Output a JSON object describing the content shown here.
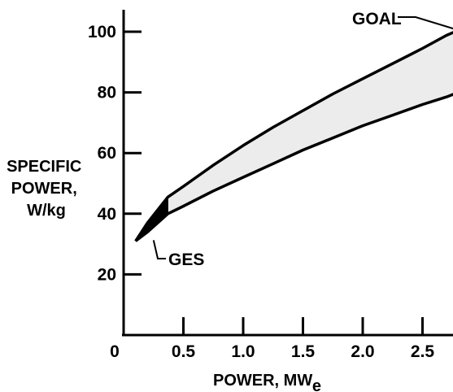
{
  "chart_data": {
    "type": "area",
    "xlabel": "POWER, MW",
    "xlabel_subscript": "e",
    "ylabel_lines": [
      "SPECIFIC",
      "POWER,",
      "W/kg"
    ],
    "xlim": [
      0,
      2.8
    ],
    "ylim": [
      0,
      110
    ],
    "x_ticks": [
      0.5,
      1.0,
      1.5,
      2.0,
      2.5
    ],
    "x_tick_labels": [
      "0.5",
      "1.0",
      "1.5",
      "2.0",
      "2.5"
    ],
    "y_ticks": [
      20,
      40,
      60,
      80,
      100
    ],
    "y_tick_labels": [
      "20",
      "40",
      "60",
      "80",
      "100"
    ],
    "origin_label": "0",
    "grid": false,
    "colors": {
      "band_fill": "#ececec",
      "ges_fill": "#000000",
      "line": "#000000"
    },
    "series": [
      {
        "name": "upper",
        "x": [
          0.1,
          0.2,
          0.3,
          0.37,
          0.5,
          0.75,
          1.0,
          1.25,
          1.5,
          1.75,
          2.0,
          2.25,
          2.5,
          2.7,
          2.8
        ],
        "y": [
          31,
          37,
          42,
          45.5,
          49,
          56,
          62.5,
          68.5,
          74,
          79.5,
          84.5,
          89.5,
          94.5,
          98.8,
          100.5
        ]
      },
      {
        "name": "lower",
        "x": [
          0.1,
          0.2,
          0.3,
          0.37,
          0.5,
          0.75,
          1.0,
          1.25,
          1.5,
          1.75,
          2.0,
          2.25,
          2.5,
          2.7,
          2.8
        ],
        "y": [
          31,
          34,
          37.5,
          40,
          42.5,
          47.5,
          52,
          56.5,
          61,
          65,
          69,
          72.5,
          76,
          78.5,
          80
        ]
      }
    ],
    "ges_region": {
      "upper": {
        "x": [
          0.1,
          0.2,
          0.3,
          0.37
        ],
        "y": [
          31,
          37,
          42,
          45.5
        ]
      },
      "lower": {
        "x": [
          0.1,
          0.2,
          0.3,
          0.37
        ],
        "y": [
          31,
          34,
          37.5,
          40
        ]
      }
    },
    "annotations": [
      {
        "text": "GOAL",
        "target_x": 2.8,
        "target_y": 100.5
      },
      {
        "text": "GES",
        "target_x": 0.25,
        "target_y": 35
      }
    ]
  }
}
